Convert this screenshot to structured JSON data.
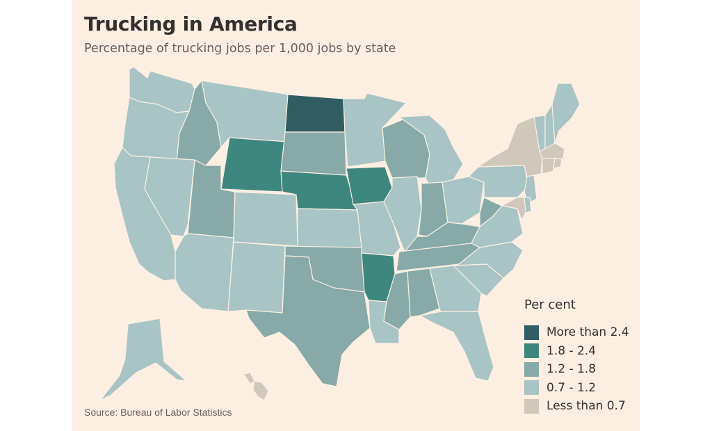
{
  "title": "Trucking in America",
  "subtitle": "Percentage of trucking jobs per 1,000 jobs by state",
  "source": "Source: Bureau of Labor Statistics",
  "legend": {
    "title": "Per cent",
    "items": [
      {
        "label": "More than 2.4",
        "color": "#2f5d62"
      },
      {
        "label": "1.8 - 2.4",
        "color": "#3e877f"
      },
      {
        "label": "1.2 - 1.8",
        "color": "#87aaa8"
      },
      {
        "label": "0.7 - 1.2",
        "color": "#a9c4c5"
      },
      {
        "label": "Less than 0.7",
        "color": "#cfc8bb"
      }
    ]
  },
  "states": [
    {
      "name": "Washington",
      "class": "0.7-1.2"
    },
    {
      "name": "Oregon",
      "class": "0.7-1.2"
    },
    {
      "name": "California",
      "class": "0.7-1.2"
    },
    {
      "name": "Idaho",
      "class": "1.2-1.8"
    },
    {
      "name": "Nevada",
      "class": "0.7-1.2"
    },
    {
      "name": "Montana",
      "class": "0.7-1.2"
    },
    {
      "name": "Wyoming",
      "class": "1.8-2.4"
    },
    {
      "name": "Utah",
      "class": "1.2-1.8"
    },
    {
      "name": "Arizona",
      "class": "0.7-1.2"
    },
    {
      "name": "Colorado",
      "class": "0.7-1.2"
    },
    {
      "name": "New Mexico",
      "class": "0.7-1.2"
    },
    {
      "name": "North Dakota",
      "class": ">2.4"
    },
    {
      "name": "South Dakota",
      "class": "1.2-1.8"
    },
    {
      "name": "Nebraska",
      "class": "1.8-2.4"
    },
    {
      "name": "Kansas",
      "class": "0.7-1.2"
    },
    {
      "name": "Oklahoma",
      "class": "1.2-1.8"
    },
    {
      "name": "Texas",
      "class": "1.2-1.8"
    },
    {
      "name": "Minnesota",
      "class": "0.7-1.2"
    },
    {
      "name": "Iowa",
      "class": "1.8-2.4"
    },
    {
      "name": "Missouri",
      "class": "0.7-1.2"
    },
    {
      "name": "Arkansas",
      "class": "1.8-2.4"
    },
    {
      "name": "Louisiana",
      "class": "0.7-1.2"
    },
    {
      "name": "Wisconsin",
      "class": "1.2-1.8"
    },
    {
      "name": "Illinois",
      "class": "0.7-1.2"
    },
    {
      "name": "Michigan",
      "class": "0.7-1.2"
    },
    {
      "name": "Indiana",
      "class": "1.2-1.8"
    },
    {
      "name": "Ohio",
      "class": "0.7-1.2"
    },
    {
      "name": "Kentucky",
      "class": "1.2-1.8"
    },
    {
      "name": "Tennessee",
      "class": "1.2-1.8"
    },
    {
      "name": "Mississippi",
      "class": "1.2-1.8"
    },
    {
      "name": "Alabama",
      "class": "1.2-1.8"
    },
    {
      "name": "Georgia",
      "class": "0.7-1.2"
    },
    {
      "name": "Florida",
      "class": "0.7-1.2"
    },
    {
      "name": "South Carolina",
      "class": "0.7-1.2"
    },
    {
      "name": "North Carolina",
      "class": "0.7-1.2"
    },
    {
      "name": "Virginia",
      "class": "0.7-1.2"
    },
    {
      "name": "West Virginia",
      "class": "1.2-1.8"
    },
    {
      "name": "Pennsylvania",
      "class": "0.7-1.2"
    },
    {
      "name": "New York",
      "class": "<0.7"
    },
    {
      "name": "Vermont",
      "class": "0.7-1.2"
    },
    {
      "name": "New Hampshire",
      "class": "0.7-1.2"
    },
    {
      "name": "Maine",
      "class": "0.7-1.2"
    },
    {
      "name": "Massachusetts",
      "class": "<0.7"
    },
    {
      "name": "Connecticut",
      "class": "<0.7"
    },
    {
      "name": "Rhode Island",
      "class": "<0.7"
    },
    {
      "name": "New Jersey",
      "class": "0.7-1.2"
    },
    {
      "name": "Delaware",
      "class": "0.7-1.2"
    },
    {
      "name": "Maryland",
      "class": "<0.7"
    },
    {
      "name": "Alaska",
      "class": "0.7-1.2"
    },
    {
      "name": "Hawaii",
      "class": "<0.7"
    }
  ],
  "class_colors": {
    ">2.4": "#2f5d62",
    "1.8-2.4": "#3e877f",
    "1.2-1.8": "#87aaa8",
    "0.7-1.2": "#a9c4c5",
    "<0.7": "#cfc8bb"
  }
}
